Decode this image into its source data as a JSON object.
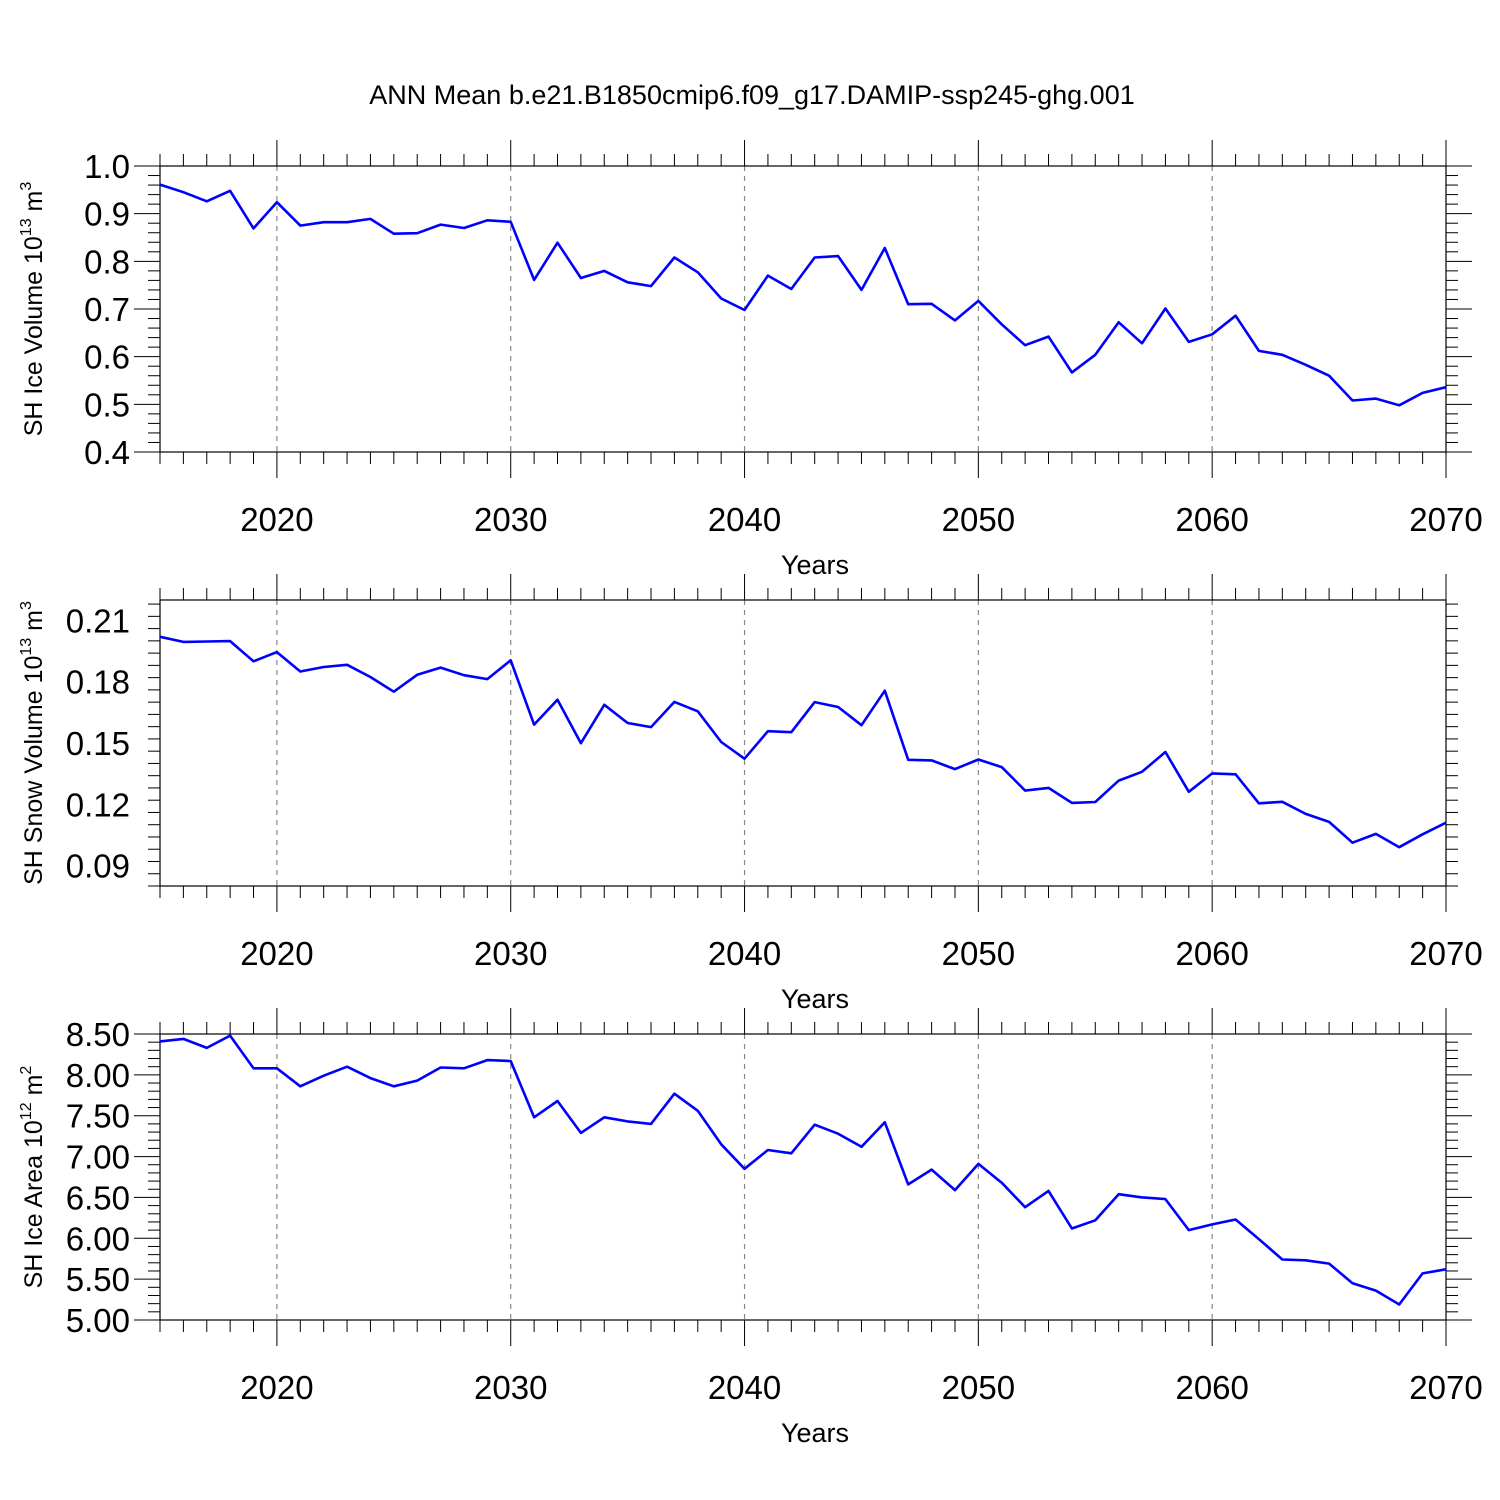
{
  "figure": {
    "title": "ANN Mean b.e21.B1850cmip6.f09_g17.DAMIP-ssp245-ghg.001",
    "line_color": "#0000ff"
  },
  "chart_data": [
    {
      "type": "line",
      "title": "",
      "xlabel": "Years",
      "ylabel": {
        "main": "SH Ice Volume 10",
        "exp": "13",
        "unit": " m",
        "unit_exp": "3"
      },
      "xlim": [
        2015,
        2070
      ],
      "ylim": [
        0.4,
        1.0
      ],
      "grid": "vertical dashed at major x ticks",
      "xticks": [
        2020,
        2030,
        2040,
        2050,
        2060,
        2070
      ],
      "xtick_labels": [
        "2020",
        "2030",
        "2040",
        "2050",
        "2060",
        "2070"
      ],
      "yticks": [
        0.4,
        0.5,
        0.6,
        0.7,
        0.8,
        0.9,
        1.0
      ],
      "ytick_labels": [
        "0.4",
        "0.5",
        "0.6",
        "0.7",
        "0.8",
        "0.9",
        "1.0"
      ],
      "series": [
        {
          "x": [
            2015,
            2016,
            2017,
            2018,
            2019,
            2020,
            2021,
            2022,
            2023,
            2024,
            2025,
            2026,
            2027,
            2028,
            2029,
            2030,
            2031,
            2032,
            2033,
            2034,
            2035,
            2036,
            2037,
            2038,
            2039,
            2040,
            2041,
            2042,
            2043,
            2044,
            2045,
            2046,
            2047,
            2048,
            2049,
            2050,
            2051,
            2052,
            2053,
            2054,
            2055,
            2056,
            2057,
            2058,
            2059,
            2060,
            2061,
            2062,
            2063,
            2064,
            2065,
            2066,
            2067,
            2068,
            2069,
            2070
          ],
          "values": [
            0.961,
            0.945,
            0.926,
            0.948,
            0.869,
            0.924,
            0.875,
            0.882,
            0.882,
            0.889,
            0.858,
            0.859,
            0.877,
            0.87,
            0.886,
            0.883,
            0.761,
            0.839,
            0.765,
            0.78,
            0.756,
            0.748,
            0.808,
            0.777,
            0.722,
            0.698,
            0.77,
            0.742,
            0.808,
            0.811,
            0.74,
            0.828,
            0.71,
            0.711,
            0.676,
            0.717,
            0.668,
            0.624,
            0.642,
            0.567,
            0.604,
            0.672,
            0.628,
            0.701,
            0.631,
            0.647,
            0.686,
            0.612,
            0.604,
            0.583,
            0.56,
            0.508,
            0.512,
            0.498,
            0.524,
            0.536
          ]
        }
      ]
    },
    {
      "type": "line",
      "title": "",
      "xlabel": "Years",
      "ylabel": {
        "main": "SH Snow Volume 10",
        "exp": "13",
        "unit": " m",
        "unit_exp": "3"
      },
      "xlim": [
        2015,
        2070
      ],
      "ylim": [
        0.08,
        0.22
      ],
      "grid": "vertical dashed at major x ticks",
      "xticks": [
        2020,
        2030,
        2040,
        2050,
        2060,
        2070
      ],
      "xtick_labels": [
        "2020",
        "2030",
        "2040",
        "2050",
        "2060",
        "2070"
      ],
      "yticks": [
        0.09,
        0.12,
        0.15,
        0.18,
        0.21
      ],
      "ytick_labels": [
        "0.09",
        "0.12",
        "0.15",
        "0.18",
        "0.21"
      ],
      "series": [
        {
          "x": [
            2015,
            2016,
            2017,
            2018,
            2019,
            2020,
            2021,
            2022,
            2023,
            2024,
            2025,
            2026,
            2027,
            2028,
            2029,
            2030,
            2031,
            2032,
            2033,
            2034,
            2035,
            2036,
            2037,
            2038,
            2039,
            2040,
            2041,
            2042,
            2043,
            2044,
            2045,
            2046,
            2047,
            2048,
            2049,
            2050,
            2051,
            2052,
            2053,
            2054,
            2055,
            2056,
            2057,
            2058,
            2059,
            2060,
            2061,
            2062,
            2063,
            2064,
            2065,
            2066,
            2067,
            2068,
            2069,
            2070
          ],
          "values": [
            0.202,
            0.1995,
            0.1997,
            0.1999,
            0.19,
            0.1945,
            0.185,
            0.1872,
            0.1883,
            0.1823,
            0.1751,
            0.1834,
            0.1869,
            0.1832,
            0.1813,
            0.1905,
            0.159,
            0.1712,
            0.1499,
            0.1687,
            0.1598,
            0.1578,
            0.1701,
            0.1655,
            0.1505,
            0.1423,
            0.1558,
            0.1553,
            0.17,
            0.1676,
            0.1587,
            0.1756,
            0.1418,
            0.1415,
            0.1372,
            0.1419,
            0.1382,
            0.1267,
            0.128,
            0.1207,
            0.1211,
            0.1316,
            0.1359,
            0.1456,
            0.1261,
            0.1351,
            0.1347,
            0.1205,
            0.1212,
            0.1153,
            0.1114,
            0.1012,
            0.1055,
            0.099,
            0.1053,
            0.111
          ]
        }
      ]
    },
    {
      "type": "line",
      "title": "",
      "xlabel": "Years",
      "ylabel": {
        "main": "SH Ice Area 10",
        "exp": "12",
        "unit": " m",
        "unit_exp": "2"
      },
      "xlim": [
        2015,
        2070
      ],
      "ylim": [
        5.0,
        8.5
      ],
      "grid": "vertical dashed at major x ticks",
      "xticks": [
        2020,
        2030,
        2040,
        2050,
        2060,
        2070
      ],
      "xtick_labels": [
        "2020",
        "2030",
        "2040",
        "2050",
        "2060",
        "2070"
      ],
      "yticks": [
        5.0,
        5.5,
        6.0,
        6.5,
        7.0,
        7.5,
        8.0,
        8.5
      ],
      "ytick_labels": [
        "5.00",
        "5.50",
        "6.00",
        "6.50",
        "7.00",
        "7.50",
        "8.00",
        "8.50"
      ],
      "series": [
        {
          "x": [
            2015,
            2016,
            2017,
            2018,
            2019,
            2020,
            2021,
            2022,
            2023,
            2024,
            2025,
            2026,
            2027,
            2028,
            2029,
            2030,
            2031,
            2032,
            2033,
            2034,
            2035,
            2036,
            2037,
            2038,
            2039,
            2040,
            2041,
            2042,
            2043,
            2044,
            2045,
            2046,
            2047,
            2048,
            2049,
            2050,
            2051,
            2052,
            2053,
            2054,
            2055,
            2056,
            2057,
            2058,
            2059,
            2060,
            2061,
            2062,
            2063,
            2064,
            2065,
            2066,
            2067,
            2068,
            2069,
            2070
          ],
          "values": [
            8.41,
            8.44,
            8.33,
            8.48,
            8.08,
            8.08,
            7.86,
            7.99,
            8.1,
            7.96,
            7.86,
            7.93,
            8.09,
            8.08,
            8.18,
            8.17,
            7.48,
            7.68,
            7.29,
            7.48,
            7.43,
            7.4,
            7.77,
            7.56,
            7.15,
            6.85,
            7.08,
            7.04,
            7.39,
            7.28,
            7.12,
            7.42,
            6.66,
            6.84,
            6.59,
            6.91,
            6.68,
            6.38,
            6.58,
            6.12,
            6.22,
            6.54,
            6.5,
            6.48,
            6.1,
            6.17,
            6.23,
            5.99,
            5.74,
            5.73,
            5.69,
            5.45,
            5.36,
            5.19,
            5.57,
            5.62
          ]
        }
      ]
    }
  ]
}
